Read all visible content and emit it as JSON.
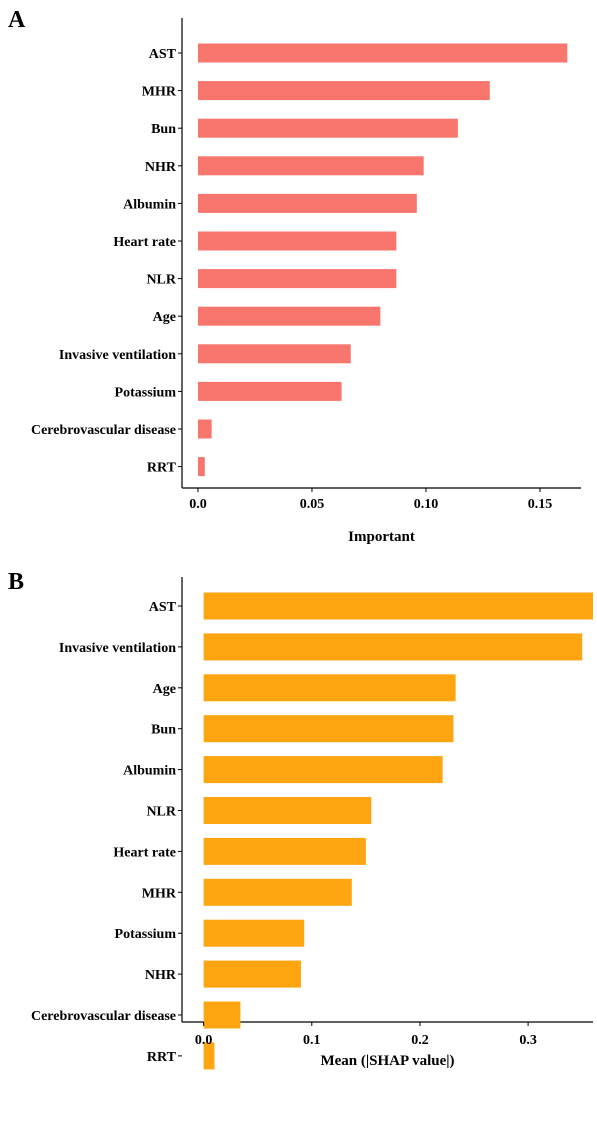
{
  "panels": [
    {
      "letter": "A"
    },
    {
      "letter": "B"
    }
  ],
  "chart_data": [
    {
      "type": "bar",
      "orientation": "horizontal",
      "categories": [
        "AST",
        "MHR",
        "Bun",
        "NHR",
        "Albumin",
        "Heart rate",
        "NLR",
        "Age",
        "Invasive ventilation",
        "Potassium",
        "Cerebrovascular disease",
        "RRT"
      ],
      "values": [
        0.162,
        0.128,
        0.114,
        0.099,
        0.096,
        0.087,
        0.087,
        0.08,
        0.067,
        0.063,
        0.006,
        0.003
      ],
      "xlabel": "Important",
      "ylabel": "",
      "xlim": [
        -0.007,
        0.168
      ],
      "xticks": [
        0.0,
        0.05,
        0.1,
        0.15
      ],
      "xtick_labels": [
        "0.0",
        "0.05",
        "0.10",
        "0.15"
      ],
      "bar_color": "#F8766D",
      "grid": false
    },
    {
      "type": "bar",
      "orientation": "horizontal",
      "categories": [
        "AST",
        "Invasive ventilation",
        "Age",
        "Bun",
        "Albumin",
        "NLR",
        "Heart rate",
        "MHR",
        "Potassium",
        "NHR",
        "Cerebrovascular disease",
        "RRT"
      ],
      "values": [
        0.36,
        0.35,
        0.233,
        0.231,
        0.221,
        0.155,
        0.15,
        0.137,
        0.093,
        0.09,
        0.034,
        0.01
      ],
      "xlabel": "Mean (|SHAP value|)",
      "ylabel": "",
      "xlim": [
        -0.02,
        0.36
      ],
      "xticks": [
        0.0,
        0.1,
        0.2,
        0.3
      ],
      "xtick_labels": [
        "0.0",
        "0.1",
        "0.2",
        "0.3"
      ],
      "bar_color": "#FFA511",
      "grid": false
    }
  ]
}
